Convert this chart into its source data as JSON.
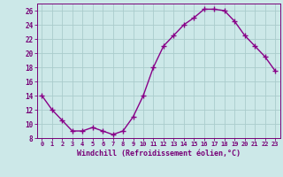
{
  "x": [
    0,
    1,
    2,
    3,
    4,
    5,
    6,
    7,
    8,
    9,
    10,
    11,
    12,
    13,
    14,
    15,
    16,
    17,
    18,
    19,
    20,
    21,
    22,
    23
  ],
  "y": [
    14,
    12,
    10.5,
    9,
    9,
    9.5,
    9,
    8.5,
    9,
    11,
    14,
    18,
    21,
    22.5,
    24,
    25,
    26.2,
    26.2,
    26,
    24.5,
    22.5,
    21,
    19.5,
    17.5
  ],
  "line_color": "#880088",
  "marker": "+",
  "marker_size": 4,
  "marker_linewidth": 1.0,
  "line_width": 1.0,
  "bg_color": "#cce8e8",
  "grid_color": "#aacccc",
  "xlabel": "Windchill (Refroidissement éolien,°C)",
  "xlabel_color": "#770077",
  "tick_color": "#770077",
  "ylim": [
    8,
    27
  ],
  "xlim": [
    -0.5,
    23.5
  ],
  "yticks": [
    8,
    10,
    12,
    14,
    16,
    18,
    20,
    22,
    24,
    26
  ],
  "xticks": [
    0,
    1,
    2,
    3,
    4,
    5,
    6,
    7,
    8,
    9,
    10,
    11,
    12,
    13,
    14,
    15,
    16,
    17,
    18,
    19,
    20,
    21,
    22,
    23
  ],
  "xtick_labels": [
    "0",
    "1",
    "2",
    "3",
    "4",
    "5",
    "6",
    "7",
    "8",
    "9",
    "10",
    "11",
    "12",
    "13",
    "14",
    "15",
    "16",
    "17",
    "18",
    "19",
    "20",
    "21",
    "22",
    "23"
  ]
}
